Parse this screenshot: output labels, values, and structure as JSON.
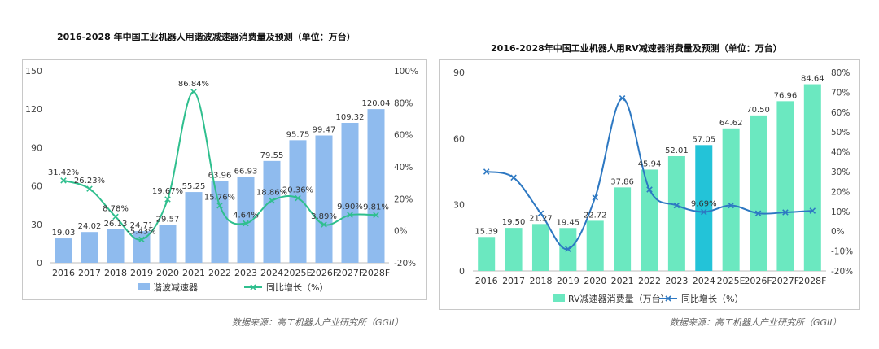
{
  "left": {
    "title": "2016-2028 年中国工业机器人用谐波减速器消费量及预测（单位：万台）",
    "source": "数据来源：高工机器人产业研究所（GGII）"
  },
  "right": {
    "title": "2016-2028年中国工业机器人用RV减速器消费量及预测（单位：万台）",
    "source": "数据来源：高工机器人产业研究所（GGII）"
  },
  "colors": {
    "left_bar": "#8fbbee",
    "left_line": "#2fbf8e",
    "right_bar": "#6be8c0",
    "right_bar_highlight": "#23c3d8",
    "right_line": "#2d78c2"
  },
  "chart_data": [
    {
      "type": "bar",
      "categories": [
        "2016",
        "2017",
        "2018",
        "2019",
        "2020",
        "2021",
        "2022",
        "2023",
        "2024",
        "2025E",
        "2026F",
        "2027F",
        "2028F"
      ],
      "series": [
        {
          "name": "谐波减速器",
          "type": "bar",
          "axis": "left",
          "values": [
            19.03,
            24.02,
            26.13,
            24.71,
            29.57,
            55.25,
            63.96,
            66.93,
            79.55,
            95.75,
            99.47,
            109.32,
            120.04
          ],
          "labels": [
            "19.03",
            "24.02",
            "26.13",
            "24.71",
            "29.57",
            "55.25",
            "63.96",
            "66.93",
            "79.55",
            "95.75",
            "99.47",
            "109.32",
            "120.04"
          ]
        },
        {
          "name": "同比增长（%）",
          "type": "line",
          "axis": "right",
          "values": [
            31.42,
            26.23,
            8.78,
            -5.43,
            19.67,
            86.84,
            15.76,
            4.64,
            18.86,
            20.36,
            3.89,
            9.9,
            9.81
          ],
          "labels": [
            "31.42%",
            "26.23%",
            "8.78%",
            "-5.43%",
            "19.67%",
            "86.84%",
            "15.76%",
            "4.64%",
            "18.86%",
            "20.36%",
            "3.89%",
            "9.90%",
            "9.81%"
          ]
        }
      ],
      "y_left": {
        "min": 0,
        "max": 150,
        "ticks": [
          "0",
          "30",
          "60",
          "90",
          "120",
          "150"
        ]
      },
      "y_right": {
        "min": -20,
        "max": 100,
        "ticks": [
          "-20%",
          "0%",
          "20%",
          "40%",
          "60%",
          "80%",
          "100%"
        ]
      },
      "legend_position": "bottom"
    },
    {
      "type": "bar",
      "categories": [
        "2016",
        "2017",
        "2018",
        "2019",
        "2020",
        "2021",
        "2022",
        "2023",
        "2024",
        "2025E",
        "2026F",
        "2027F",
        "2028F"
      ],
      "series": [
        {
          "name": "RV减速器消费量（万台）",
          "type": "bar",
          "axis": "left",
          "values": [
            15.39,
            19.5,
            21.27,
            19.45,
            22.72,
            37.86,
            45.94,
            52.01,
            57.05,
            64.62,
            70.5,
            76.96,
            84.64
          ],
          "labels": [
            "15.39",
            "19.50",
            "21.27",
            "19.45",
            "22.72",
            "37.86",
            "45.94",
            "52.01",
            "57.05",
            "64.62",
            "70.50",
            "76.96",
            "84.64"
          ]
        },
        {
          "name": "同比增长（%）",
          "type": "line",
          "axis": "right",
          "values": [
            30,
            27,
            9,
            -9,
            17,
            67,
            21,
            13,
            9.69,
            13,
            9,
            9.5,
            10.3
          ],
          "labels": [
            "",
            "",
            "",
            "",
            "",
            "",
            "",
            "",
            "9.69%",
            "",
            "",
            "",
            ""
          ]
        }
      ],
      "y_left": {
        "min": 0,
        "max": 90,
        "ticks": [
          "0",
          "30",
          "60",
          "90"
        ]
      },
      "y_right": {
        "min": -20,
        "max": 80,
        "ticks": [
          "-20%",
          "-10%",
          "0%",
          "10%",
          "20%",
          "30%",
          "40%",
          "50%",
          "60%",
          "70%",
          "80%"
        ]
      },
      "highlight_category": "2024",
      "legend_position": "bottom"
    }
  ]
}
